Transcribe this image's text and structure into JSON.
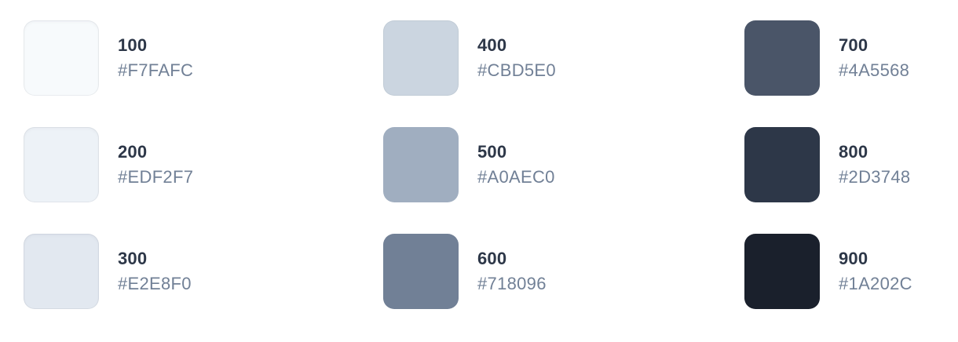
{
  "palette": {
    "swatches": [
      {
        "shade": "100",
        "hex": "#F7FAFC",
        "color": "#F7FAFC"
      },
      {
        "shade": "200",
        "hex": "#EDF2F7",
        "color": "#EDF2F7"
      },
      {
        "shade": "300",
        "hex": "#E2E8F0",
        "color": "#E2E8F0"
      },
      {
        "shade": "400",
        "hex": "#CBD5E0",
        "color": "#CBD5E0"
      },
      {
        "shade": "500",
        "hex": "#A0AEC0",
        "color": "#A0AEC0"
      },
      {
        "shade": "600",
        "hex": "#718096",
        "color": "#718096"
      },
      {
        "shade": "700",
        "hex": "#4A5568",
        "color": "#4A5568"
      },
      {
        "shade": "800",
        "hex": "#2D3748",
        "color": "#2D3748"
      },
      {
        "shade": "900",
        "hex": "#1A202C",
        "color": "#1A202C"
      }
    ]
  }
}
